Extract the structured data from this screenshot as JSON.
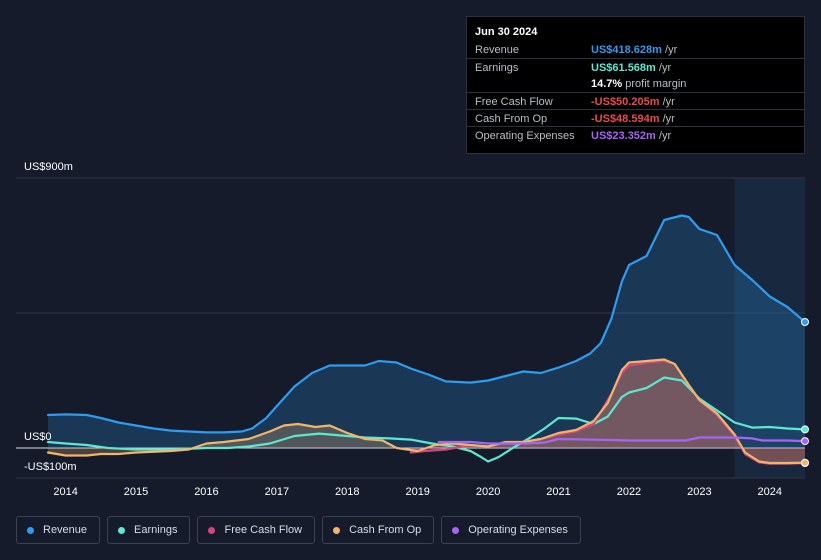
{
  "tooltip": {
    "date": "Jun 30 2024",
    "rows": [
      {
        "label": "Revenue",
        "value": "US$418.628m",
        "unit": "/yr",
        "color": "#2e9cf0"
      },
      {
        "label": "Earnings",
        "value": "US$61.568m",
        "unit": "/yr",
        "color": "#5ee8d0"
      },
      {
        "label": "",
        "value": "14.7%",
        "unit": "profit margin",
        "color": "#ffffff"
      },
      {
        "label": "Free Cash Flow",
        "value": "-US$50.205m",
        "unit": "/yr",
        "color": "#e84d4d"
      },
      {
        "label": "Cash From Op",
        "value": "-US$48.594m",
        "unit": "/yr",
        "color": "#e84d4d"
      },
      {
        "label": "Operating Expenses",
        "value": "US$23.352m",
        "unit": "/yr",
        "color": "#a865f5"
      }
    ]
  },
  "legend": [
    {
      "label": "Revenue",
      "color": "#2e9cf0"
    },
    {
      "label": "Earnings",
      "color": "#5ee8d0"
    },
    {
      "label": "Free Cash Flow",
      "color": "#d6457d"
    },
    {
      "label": "Cash From Op",
      "color": "#f2b56b"
    },
    {
      "label": "Operating Expenses",
      "color": "#a865f5"
    }
  ],
  "chart_data": {
    "type": "area",
    "title": "",
    "xlabel": "",
    "ylabel": "",
    "y_top_label": "US$900m",
    "y_zero_label": "US$0",
    "y_bottom_label": "-US$100m",
    "ylim": [
      -100,
      900
    ],
    "xlim": [
      2013.75,
      2024.5
    ],
    "x_ticks": [
      "2014",
      "2015",
      "2016",
      "2017",
      "2018",
      "2019",
      "2020",
      "2021",
      "2022",
      "2023",
      "2024"
    ],
    "highlight_start": 2023.5,
    "series": [
      {
        "name": "Revenue",
        "color": "#2e9cf0",
        "fill": true,
        "points": [
          [
            2013.75,
            110
          ],
          [
            2014.0,
            112
          ],
          [
            2014.3,
            110
          ],
          [
            2014.5,
            100
          ],
          [
            2014.75,
            85
          ],
          [
            2015.0,
            75
          ],
          [
            2015.25,
            65
          ],
          [
            2015.5,
            58
          ],
          [
            2015.75,
            55
          ],
          [
            2016.0,
            52
          ],
          [
            2016.25,
            52
          ],
          [
            2016.5,
            55
          ],
          [
            2016.65,
            65
          ],
          [
            2016.85,
            100
          ],
          [
            2017.0,
            140
          ],
          [
            2017.25,
            205
          ],
          [
            2017.5,
            250
          ],
          [
            2017.75,
            275
          ],
          [
            2018.0,
            275
          ],
          [
            2018.25,
            275
          ],
          [
            2018.45,
            290
          ],
          [
            2018.7,
            285
          ],
          [
            2018.9,
            265
          ],
          [
            2019.15,
            245
          ],
          [
            2019.4,
            222
          ],
          [
            2019.75,
            218
          ],
          [
            2020.0,
            225
          ],
          [
            2020.25,
            240
          ],
          [
            2020.5,
            255
          ],
          [
            2020.75,
            250
          ],
          [
            2021.0,
            268
          ],
          [
            2021.25,
            290
          ],
          [
            2021.45,
            315
          ],
          [
            2021.6,
            350
          ],
          [
            2021.75,
            430
          ],
          [
            2021.9,
            555
          ],
          [
            2022.0,
            610
          ],
          [
            2022.25,
            640
          ],
          [
            2022.5,
            760
          ],
          [
            2022.75,
            775
          ],
          [
            2022.85,
            770
          ],
          [
            2023.0,
            730
          ],
          [
            2023.25,
            710
          ],
          [
            2023.5,
            610
          ],
          [
            2023.75,
            560
          ],
          [
            2024.0,
            505
          ],
          [
            2024.25,
            470
          ],
          [
            2024.5,
            420
          ]
        ]
      },
      {
        "name": "Earnings",
        "color": "#5ee8d0",
        "fill": false,
        "points": [
          [
            2013.75,
            20
          ],
          [
            2014.0,
            15
          ],
          [
            2014.3,
            10
          ],
          [
            2014.6,
            0
          ],
          [
            2015.0,
            -5
          ],
          [
            2015.5,
            -5
          ],
          [
            2016.0,
            0
          ],
          [
            2016.3,
            0
          ],
          [
            2016.6,
            5
          ],
          [
            2016.9,
            15
          ],
          [
            2017.25,
            40
          ],
          [
            2017.6,
            48
          ],
          [
            2018.0,
            40
          ],
          [
            2018.25,
            35
          ],
          [
            2018.6,
            32
          ],
          [
            2018.9,
            28
          ],
          [
            2019.2,
            15
          ],
          [
            2019.5,
            5
          ],
          [
            2019.75,
            -10
          ],
          [
            2019.9,
            -30
          ],
          [
            2020.0,
            -45
          ],
          [
            2020.15,
            -30
          ],
          [
            2020.35,
            0
          ],
          [
            2020.6,
            35
          ],
          [
            2020.8,
            65
          ],
          [
            2021.0,
            100
          ],
          [
            2021.25,
            98
          ],
          [
            2021.5,
            80
          ],
          [
            2021.7,
            105
          ],
          [
            2021.9,
            170
          ],
          [
            2022.0,
            185
          ],
          [
            2022.25,
            200
          ],
          [
            2022.5,
            235
          ],
          [
            2022.75,
            225
          ],
          [
            2023.0,
            165
          ],
          [
            2023.25,
            125
          ],
          [
            2023.5,
            85
          ],
          [
            2023.75,
            68
          ],
          [
            2024.0,
            70
          ],
          [
            2024.25,
            65
          ],
          [
            2024.5,
            62
          ]
        ]
      },
      {
        "name": "Free Cash Flow",
        "color": "#d6457d",
        "fill": true,
        "points": [
          [
            2018.9,
            -15
          ],
          [
            2019.1,
            -10
          ],
          [
            2019.4,
            -5
          ],
          [
            2019.75,
            10
          ],
          [
            2020.0,
            5
          ],
          [
            2020.25,
            18
          ],
          [
            2020.5,
            20
          ],
          [
            2020.75,
            30
          ],
          [
            2021.0,
            45
          ],
          [
            2021.25,
            55
          ],
          [
            2021.5,
            80
          ],
          [
            2021.75,
            180
          ],
          [
            2021.9,
            250
          ],
          [
            2022.0,
            275
          ],
          [
            2022.25,
            285
          ],
          [
            2022.5,
            290
          ],
          [
            2022.65,
            280
          ],
          [
            2022.85,
            210
          ],
          [
            2023.0,
            160
          ],
          [
            2023.25,
            110
          ],
          [
            2023.5,
            40
          ],
          [
            2023.65,
            -20
          ],
          [
            2023.85,
            -48
          ],
          [
            2024.0,
            -52
          ],
          [
            2024.25,
            -52
          ],
          [
            2024.5,
            -50
          ]
        ]
      },
      {
        "name": "Cash From Op",
        "color": "#f2b56b",
        "fill": true,
        "points": [
          [
            2013.75,
            -15
          ],
          [
            2014.0,
            -25
          ],
          [
            2014.3,
            -25
          ],
          [
            2014.5,
            -20
          ],
          [
            2014.75,
            -20
          ],
          [
            2015.0,
            -15
          ],
          [
            2015.5,
            -10
          ],
          [
            2015.75,
            -5
          ],
          [
            2016.0,
            15
          ],
          [
            2016.25,
            20
          ],
          [
            2016.6,
            30
          ],
          [
            2016.9,
            55
          ],
          [
            2017.1,
            75
          ],
          [
            2017.3,
            80
          ],
          [
            2017.55,
            70
          ],
          [
            2017.75,
            75
          ],
          [
            2018.0,
            50
          ],
          [
            2018.25,
            30
          ],
          [
            2018.5,
            25
          ],
          [
            2018.7,
            0
          ],
          [
            2019.0,
            -10
          ],
          [
            2019.25,
            10
          ],
          [
            2019.5,
            15
          ],
          [
            2019.75,
            10
          ],
          [
            2020.0,
            5
          ],
          [
            2020.25,
            20
          ],
          [
            2020.5,
            20
          ],
          [
            2020.75,
            30
          ],
          [
            2021.0,
            50
          ],
          [
            2021.25,
            60
          ],
          [
            2021.5,
            90
          ],
          [
            2021.7,
            150
          ],
          [
            2021.9,
            260
          ],
          [
            2022.0,
            285
          ],
          [
            2022.25,
            290
          ],
          [
            2022.5,
            295
          ],
          [
            2022.65,
            280
          ],
          [
            2022.85,
            210
          ],
          [
            2023.0,
            160
          ],
          [
            2023.25,
            115
          ],
          [
            2023.5,
            45
          ],
          [
            2023.65,
            -15
          ],
          [
            2023.85,
            -45
          ],
          [
            2024.0,
            -50
          ],
          [
            2024.25,
            -50
          ],
          [
            2024.5,
            -49
          ]
        ]
      },
      {
        "name": "Operating Expenses",
        "color": "#a865f5",
        "fill": false,
        "points": [
          [
            2019.3,
            20
          ],
          [
            2019.75,
            20
          ],
          [
            2020.0,
            15
          ],
          [
            2020.5,
            15
          ],
          [
            2020.8,
            18
          ],
          [
            2021.0,
            30
          ],
          [
            2021.5,
            28
          ],
          [
            2022.0,
            25
          ],
          [
            2022.5,
            25
          ],
          [
            2022.8,
            25
          ],
          [
            2023.0,
            35
          ],
          [
            2023.5,
            35
          ],
          [
            2023.75,
            32
          ],
          [
            2023.9,
            25
          ],
          [
            2024.25,
            25
          ],
          [
            2024.5,
            23
          ]
        ]
      }
    ]
  }
}
